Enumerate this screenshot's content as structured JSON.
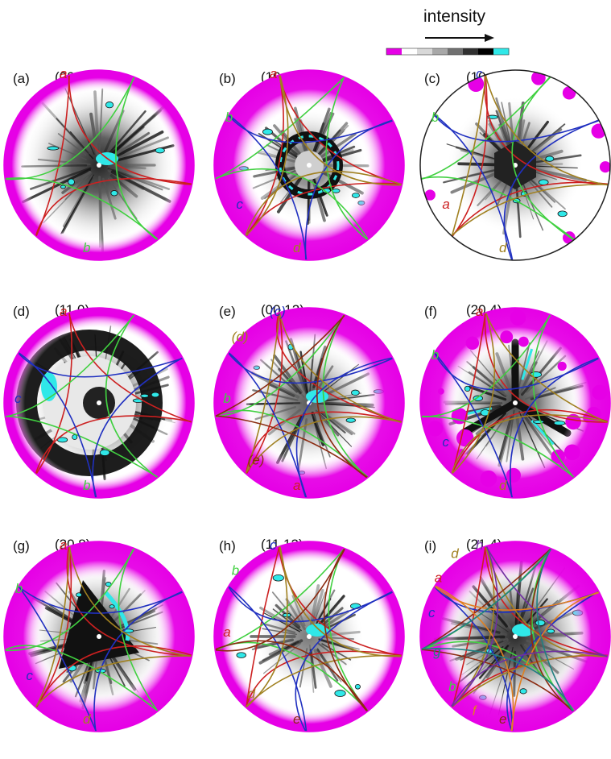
{
  "legend": {
    "title": "intensity",
    "colors": [
      "#e600e6",
      "#ffffff",
      "#d8d8d8",
      "#a8a8a8",
      "#707070",
      "#303030",
      "#000000",
      "#30e8e8"
    ]
  },
  "palette": {
    "magenta": "#e600e6",
    "cyan": "#30e8e8",
    "red": "#cc2020",
    "green": "#40d040",
    "blue": "#2030c0",
    "olive": "#a08020",
    "brown": "#8b2a10",
    "orange": "#e08020",
    "purple": "#7030a0",
    "teal": "#208080"
  },
  "panels": [
    {
      "id": "a",
      "label": "(a)",
      "reflection": "(00.5)",
      "rim": "magenta",
      "dark": 0.85,
      "core": "blob",
      "colors": [
        "red",
        "green"
      ],
      "labels": [
        {
          "text": "a",
          "color": "red"
        },
        {
          "text": "b",
          "color": "green"
        }
      ]
    },
    {
      "id": "b",
      "label": "(b)",
      "reflection": "(10.4)",
      "rim": "magenta-wide",
      "dark": 0.35,
      "core": "ring",
      "colors": [
        "red",
        "green",
        "blue",
        "olive"
      ],
      "labels": [
        {
          "text": "a",
          "color": "red"
        },
        {
          "text": "b",
          "color": "green"
        },
        {
          "text": "c",
          "color": "blue"
        },
        {
          "text": "d",
          "color": "olive"
        }
      ]
    },
    {
      "id": "c",
      "label": "(c)",
      "reflection": "(10.8)",
      "rim": "thin",
      "dark": 0.6,
      "core": "hex",
      "colors": [
        "red",
        "green",
        "blue",
        "olive"
      ],
      "labels": [
        {
          "text": "c",
          "color": "blue"
        },
        {
          "text": "b",
          "color": "green"
        },
        {
          "text": "a",
          "color": "red"
        },
        {
          "text": "d",
          "color": "olive"
        }
      ]
    },
    {
      "id": "d",
      "label": "(d)",
      "reflection": "(11.0)",
      "rim": "magenta",
      "dark": 0.7,
      "core": "thickring",
      "colors": [
        "red",
        "green",
        "blue"
      ],
      "labels": [
        {
          "text": "a",
          "color": "red"
        },
        {
          "text": "c",
          "color": "blue"
        },
        {
          "text": "b",
          "color": "green"
        }
      ]
    },
    {
      "id": "e",
      "label": "(e)",
      "reflection": "(00.12)",
      "rim": "magenta-wide",
      "dark": 0.5,
      "core": "blob",
      "colors": [
        "red",
        "green",
        "blue",
        "olive",
        "brown"
      ],
      "labels": [
        {
          "text": "(c)",
          "color": "blue"
        },
        {
          "text": "(d)",
          "color": "olive"
        },
        {
          "text": "b",
          "color": "green"
        },
        {
          "text": "(e)",
          "color": "brown"
        },
        {
          "text": "a",
          "color": "red"
        }
      ]
    },
    {
      "id": "f",
      "label": "(f)",
      "reflection": "(20.4)",
      "rim": "magenta-patchy",
      "dark": 0.6,
      "core": "star",
      "colors": [
        "red",
        "green",
        "blue",
        "olive"
      ],
      "labels": [
        {
          "text": "a",
          "color": "red"
        },
        {
          "text": "b",
          "color": "green"
        },
        {
          "text": "c",
          "color": "blue"
        },
        {
          "text": "d",
          "color": "olive"
        }
      ]
    },
    {
      "id": "g",
      "label": "(g)",
      "reflection": "(20.8)",
      "rim": "magenta-wide",
      "dark": 0.65,
      "core": "triangle",
      "colors": [
        "red",
        "green",
        "blue",
        "olive"
      ],
      "labels": [
        {
          "text": "a",
          "color": "red"
        },
        {
          "text": "b",
          "color": "green"
        },
        {
          "text": "c",
          "color": "blue"
        },
        {
          "text": "d",
          "color": "olive"
        }
      ]
    },
    {
      "id": "h",
      "label": "(h)",
      "reflection": "(11.12)",
      "rim": "magenta",
      "dark": 0.3,
      "core": "blob",
      "colors": [
        "red",
        "green",
        "blue",
        "olive",
        "brown"
      ],
      "labels": [
        {
          "text": "c",
          "color": "blue"
        },
        {
          "text": "b",
          "color": "green"
        },
        {
          "text": "a",
          "color": "red"
        },
        {
          "text": "d",
          "color": "olive"
        },
        {
          "text": "e",
          "color": "brown"
        }
      ]
    },
    {
      "id": "i",
      "label": "(i)",
      "reflection": "(21.4)",
      "rim": "magenta-wide",
      "dark": 0.8,
      "core": "blob",
      "colors": [
        "red",
        "green",
        "blue",
        "olive",
        "brown",
        "orange",
        "purple",
        "teal"
      ],
      "labels": [
        {
          "text": "h",
          "color": "purple"
        },
        {
          "text": "d",
          "color": "olive"
        },
        {
          "text": "a",
          "color": "red"
        },
        {
          "text": "c",
          "color": "blue"
        },
        {
          "text": "g",
          "color": "teal"
        },
        {
          "text": "b",
          "color": "green"
        },
        {
          "text": "f",
          "color": "orange"
        },
        {
          "text": "e",
          "color": "brown"
        }
      ]
    }
  ]
}
